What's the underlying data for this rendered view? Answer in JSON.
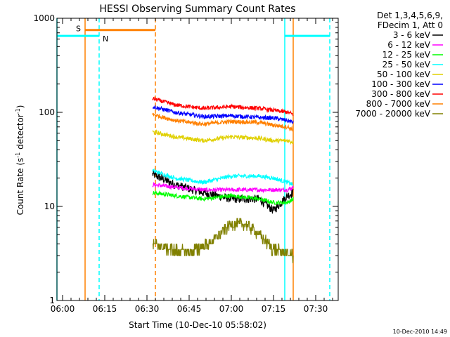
{
  "chart_data": {
    "type": "line",
    "title": "HESSI Observing Summary Count Rates",
    "xlabel": "Start Time (10-Dec-10 05:58:02)",
    "ylabel_main": "Count Rate (s",
    "ylabel_sup1": "-1",
    "ylabel_mid": " detector",
    "ylabel_sup2": "-1",
    "ylabel_end": ")",
    "yscale": "log",
    "ylim": [
      1,
      1000
    ],
    "xlim": [
      "05:58",
      "07:38"
    ],
    "x_ticks": [
      "06:00",
      "06:15",
      "06:30",
      "06:45",
      "07:00",
      "07:15",
      "07:30"
    ],
    "y_ticks": [
      "1",
      "10",
      "100",
      "1000"
    ],
    "legend": {
      "placement": "right-top",
      "header_lines": [
        "Det 1,3,4,5,6,9,",
        "FDecim 1, Att 0"
      ]
    },
    "series": [
      {
        "name": "3 - 6 keV",
        "color": "#000000",
        "x": [
          "06:32",
          "06:40",
          "06:50",
          "07:00",
          "07:10",
          "07:15",
          "07:20",
          "07:22"
        ],
        "y": [
          22,
          17,
          14,
          12,
          12,
          9,
          13,
          14
        ]
      },
      {
        "name": "6 - 12 keV",
        "color": "#ff00ff",
        "x": [
          "06:32",
          "06:40",
          "06:50",
          "07:00",
          "07:10",
          "07:15",
          "07:20",
          "07:22"
        ],
        "y": [
          17,
          16,
          15,
          15,
          15,
          15,
          15,
          16
        ]
      },
      {
        "name": "12 - 25 keV",
        "color": "#00ff00",
        "x": [
          "06:32",
          "06:40",
          "06:50",
          "07:00",
          "07:10",
          "07:15",
          "07:20",
          "07:22"
        ],
        "y": [
          14,
          13,
          12,
          13,
          12,
          11,
          11,
          12
        ]
      },
      {
        "name": "25 - 50 keV",
        "color": "#00ffff",
        "x": [
          "06:32",
          "06:40",
          "06:50",
          "07:00",
          "07:10",
          "07:15",
          "07:20",
          "07:22"
        ],
        "y": [
          24,
          20,
          18,
          21,
          21,
          20,
          18,
          17
        ]
      },
      {
        "name": "50 - 100 keV",
        "color": "#e0d000",
        "x": [
          "06:32",
          "06:40",
          "06:50",
          "07:00",
          "07:10",
          "07:15",
          "07:20",
          "07:22"
        ],
        "y": [
          62,
          55,
          50,
          55,
          53,
          50,
          50,
          48
        ]
      },
      {
        "name": "100 - 300 keV",
        "color": "#0000ff",
        "x": [
          "06:32",
          "06:40",
          "06:50",
          "07:00",
          "07:10",
          "07:15",
          "07:20",
          "07:22"
        ],
        "y": [
          115,
          100,
          90,
          92,
          88,
          87,
          82,
          78
        ]
      },
      {
        "name": "300 - 800 keV",
        "color": "#ff0000",
        "x": [
          "06:32",
          "06:40",
          "06:50",
          "07:00",
          "07:10",
          "07:15",
          "07:20",
          "07:22"
        ],
        "y": [
          140,
          120,
          110,
          115,
          110,
          105,
          100,
          95
        ]
      },
      {
        "name": "800 - 7000 keV",
        "color": "#ff8000",
        "x": [
          "06:32",
          "06:40",
          "06:50",
          "07:00",
          "07:10",
          "07:15",
          "07:20",
          "07:22"
        ],
        "y": [
          95,
          82,
          75,
          80,
          78,
          73,
          70,
          65
        ]
      },
      {
        "name": "7000 - 20000 keV",
        "color": "#808000",
        "x": [
          "06:32",
          "06:38",
          "06:45",
          "06:52",
          "07:00",
          "07:05",
          "07:10",
          "07:15",
          "07:20",
          "07:22"
        ],
        "y": [
          4,
          3.5,
          3.2,
          4,
          6.5,
          6.5,
          5,
          3.5,
          3.2,
          3
        ]
      }
    ],
    "annotations": {
      "saa": {
        "label": "S",
        "color": "#ff8000",
        "start": "06:08",
        "end": "06:33",
        "level": 750
      },
      "night": {
        "label": "N",
        "color": "#00ffff",
        "level": 650,
        "intervals": [
          [
            "05:58",
            "06:13"
          ],
          [
            "07:19",
            "07:35"
          ]
        ]
      },
      "vlines": [
        {
          "time": "05:58",
          "color": "#00ffff",
          "style": "solid"
        },
        {
          "time": "06:08",
          "color": "#ff8000",
          "style": "solid"
        },
        {
          "time": "06:13",
          "color": "#00ffff",
          "style": "dashed"
        },
        {
          "time": "06:33",
          "color": "#ff8000",
          "style": "dashed"
        },
        {
          "time": "07:19",
          "color": "#00ffff",
          "style": "solid"
        },
        {
          "time": "07:22",
          "color": "#ff8000",
          "style": "solid"
        },
        {
          "time": "07:35",
          "color": "#00ffff",
          "style": "dashed"
        }
      ]
    },
    "timestamp": "10-Dec-2010 14:49"
  }
}
